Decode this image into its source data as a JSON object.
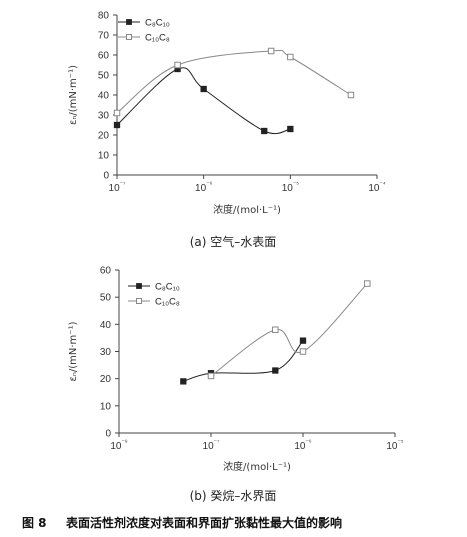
{
  "figure_caption": {
    "number": "图 8",
    "text": "表面活性剂浓度对表面和界面扩张黏性最大值的影响"
  },
  "chart_data": [
    {
      "type": "scatter",
      "subcaption": "(a) 空气–水表面",
      "xlabel": "浓度/(mol·L⁻¹)",
      "ylabel": "εₙ/(mN·m⁻¹)",
      "xscale": "log",
      "xlim": [
        1e-07,
        0.0001
      ],
      "ylim": [
        0,
        80
      ],
      "x_tick_values": [
        1e-07,
        1e-06,
        1e-05,
        0.0001
      ],
      "x_tick_labels": [
        "10⁻⁷",
        "10⁻⁶",
        "10⁻⁵",
        "10⁻⁴"
      ],
      "y_ticks": [
        0,
        10,
        20,
        30,
        40,
        50,
        60,
        70,
        80
      ],
      "grid": false,
      "legend_position": "top-left",
      "series": [
        {
          "name": "C₈C₁₀",
          "marker": "filled-square",
          "color": "#222222",
          "x": [
            1e-07,
            5e-07,
            1e-06,
            5e-06,
            1e-05
          ],
          "y": [
            25,
            53,
            43,
            22,
            23
          ]
        },
        {
          "name": "C₁₀C₈",
          "marker": "open-square",
          "color": "#888888",
          "x": [
            1e-07,
            5e-07,
            6e-06,
            1e-05,
            5e-05
          ],
          "y": [
            31,
            55,
            62,
            59,
            40
          ]
        }
      ]
    },
    {
      "type": "scatter",
      "subcaption": "(b) 癸烷–水界面",
      "xlabel": "浓度/(mol·L⁻¹)",
      "ylabel": "εₙ/(mN·m⁻¹)",
      "xscale": "log",
      "xlim": [
        1e-08,
        1e-05
      ],
      "ylim": [
        0,
        60
      ],
      "x_tick_values": [
        1e-08,
        1e-07,
        1e-06,
        1e-05
      ],
      "x_tick_labels": [
        "10⁻⁸",
        "10⁻⁷",
        "10⁻⁶",
        "10⁻⁵"
      ],
      "y_ticks": [
        0,
        10,
        20,
        30,
        40,
        50,
        60
      ],
      "grid": false,
      "legend_position": "top-left",
      "series": [
        {
          "name": "C₈C₁₀",
          "marker": "filled-square",
          "color": "#222222",
          "x": [
            5e-08,
            1e-07,
            5e-07,
            1e-06
          ],
          "y": [
            19,
            22,
            23,
            34
          ]
        },
        {
          "name": "C₁₀C₈",
          "marker": "open-square",
          "color": "#888888",
          "x": [
            1e-07,
            5e-07,
            1e-06,
            5e-06
          ],
          "y": [
            21,
            38,
            30,
            55
          ]
        }
      ]
    }
  ]
}
